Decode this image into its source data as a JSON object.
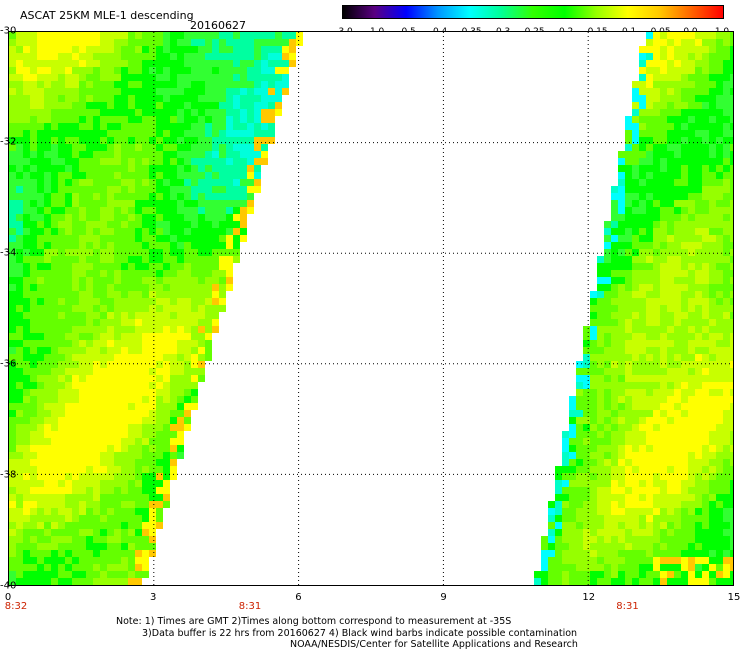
{
  "header": {
    "title": "ASCAT 25KM MLE-1 descending",
    "date": "20160627"
  },
  "colorbar": {
    "ticks": [
      "-3.0",
      "-1.0",
      "-0.5",
      "-0.4",
      "-0.35",
      "-0.3",
      "-0.25",
      "-0.2",
      "-0.15",
      "-0.1",
      "-0.05",
      "0.0",
      "1.0"
    ],
    "colors": [
      "#000000",
      "#5a0082",
      "#0000ff",
      "#0096ff",
      "#00ffff",
      "#00ff96",
      "#32ff00",
      "#00ff00",
      "#96ff00",
      "#ffff00",
      "#ffc800",
      "#ff6400",
      "#ff0000"
    ]
  },
  "axes": {
    "y_labels": [
      "-30",
      "-32",
      "-34",
      "-36",
      "-38",
      "-40"
    ],
    "x_labels": [
      "0",
      "3",
      "6",
      "9",
      "12",
      "15"
    ],
    "xlim": [
      0,
      15
    ],
    "ylim": [
      -40,
      -30
    ]
  },
  "revolutions": [
    {
      "label": "8:32",
      "x": 0
    },
    {
      "label": "8:31",
      "x": 5
    },
    {
      "label": "8:31",
      "x": 12.8
    }
  ],
  "notes": {
    "line1": "Note: 1) Times are GMT 2)Times along bottom correspond to measurement at -35S",
    "line2": "3)Data buffer is 22 hrs from 20160627 4) Black wind barbs indicate possible contamination",
    "line3": "NOAA/NESDIS/Center for Satellite Applications and Research"
  }
}
